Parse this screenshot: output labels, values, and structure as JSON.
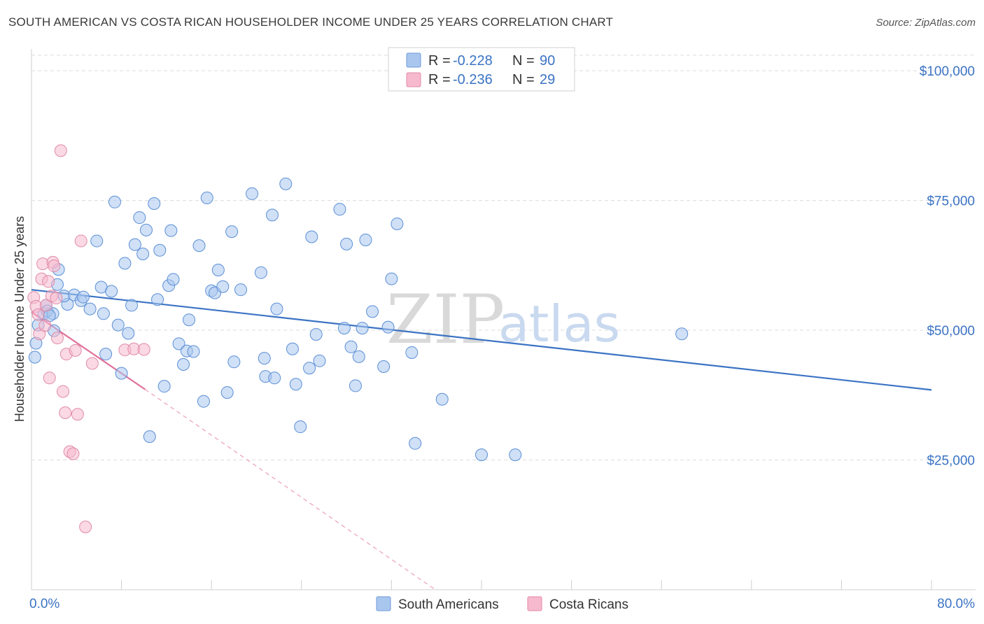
{
  "title": "SOUTH AMERICAN VS COSTA RICAN HOUSEHOLDER INCOME UNDER 25 YEARS CORRELATION CHART",
  "source": "Source: ZipAtlas.com",
  "watermark": {
    "zip": "ZIP",
    "atlas": "atlas"
  },
  "colors": {
    "blue": "#3b73c4",
    "blue_fill": "#a9c6ee",
    "pink": "#e0709a",
    "pink_fill": "#f6b9cd",
    "grid": "#dcdcdc"
  },
  "legend": {
    "rows": [
      {
        "r_label": "R = ",
        "r_value": "-0.228",
        "n_label": "N = ",
        "n_value": "90"
      },
      {
        "r_label": "R = ",
        "r_value": "-0.236",
        "n_label": "N = ",
        "n_value": "29"
      }
    ]
  },
  "bottom_legend": [
    "South Americans",
    "Costa Ricans"
  ],
  "chart_data": {
    "type": "scatter",
    "title": "SOUTH AMERICAN VS COSTA RICAN HOUSEHOLDER INCOME UNDER 25 YEARS CORRELATION CHART",
    "xlabel": "",
    "ylabel": "Householder Income Under 25 years",
    "xlim": [
      0,
      80
    ],
    "ylim": [
      0,
      105000
    ],
    "x_tick_labels": [
      "0.0%",
      "80.0%"
    ],
    "y_ticks": [
      25000,
      50000,
      75000,
      100000
    ],
    "y_tick_labels": [
      "$25,000",
      "$50,000",
      "$75,000",
      "$100,000"
    ],
    "grid": true,
    "series": [
      {
        "name": "South Americans",
        "r": -0.228,
        "n": 90,
        "trend": {
          "x0": 0,
          "y0": 57800,
          "x1": 80,
          "y1": 38500
        },
        "points": [
          [
            0.3,
            44800
          ],
          [
            0.4,
            47500
          ],
          [
            0.6,
            51000
          ],
          [
            1.1,
            53200
          ],
          [
            1.3,
            54800
          ],
          [
            1.4,
            53700
          ],
          [
            1.9,
            53200
          ],
          [
            2.3,
            58800
          ],
          [
            2.4,
            61700
          ],
          [
            3.2,
            55000
          ],
          [
            2.9,
            56600
          ],
          [
            3.8,
            56800
          ],
          [
            4.4,
            55700
          ],
          [
            4.6,
            56400
          ],
          [
            5.2,
            54100
          ],
          [
            5.8,
            67200
          ],
          [
            6.2,
            58300
          ],
          [
            6.4,
            53200
          ],
          [
            6.6,
            45400
          ],
          [
            7.1,
            57500
          ],
          [
            7.4,
            74700
          ],
          [
            7.7,
            51000
          ],
          [
            8.0,
            41700
          ],
          [
            8.3,
            62900
          ],
          [
            8.6,
            49400
          ],
          [
            8.9,
            54800
          ],
          [
            9.2,
            66500
          ],
          [
            9.6,
            71700
          ],
          [
            9.9,
            64700
          ],
          [
            10.2,
            69300
          ],
          [
            10.5,
            29500
          ],
          [
            10.9,
            74400
          ],
          [
            11.2,
            55900
          ],
          [
            11.4,
            65400
          ],
          [
            11.8,
            39200
          ],
          [
            12.2,
            58600
          ],
          [
            12.4,
            69200
          ],
          [
            12.6,
            59800
          ],
          [
            13.1,
            47400
          ],
          [
            13.5,
            43400
          ],
          [
            13.8,
            46000
          ],
          [
            14.0,
            52000
          ],
          [
            14.4,
            45900
          ],
          [
            14.9,
            66300
          ],
          [
            15.3,
            36300
          ],
          [
            15.6,
            75500
          ],
          [
            16.0,
            57600
          ],
          [
            16.3,
            57200
          ],
          [
            16.6,
            61600
          ],
          [
            17.0,
            58400
          ],
          [
            17.4,
            38000
          ],
          [
            17.8,
            69000
          ],
          [
            18.0,
            43900
          ],
          [
            18.6,
            57800
          ],
          [
            19.6,
            76300
          ],
          [
            20.4,
            61100
          ],
          [
            20.7,
            44600
          ],
          [
            20.8,
            41100
          ],
          [
            21.4,
            72200
          ],
          [
            21.6,
            40800
          ],
          [
            21.8,
            54100
          ],
          [
            22.6,
            78200
          ],
          [
            23.2,
            46400
          ],
          [
            23.5,
            39600
          ],
          [
            23.9,
            31400
          ],
          [
            24.7,
            42700
          ],
          [
            24.9,
            68000
          ],
          [
            25.3,
            49200
          ],
          [
            25.6,
            44100
          ],
          [
            27.4,
            73300
          ],
          [
            27.8,
            50400
          ],
          [
            28.0,
            66600
          ],
          [
            28.4,
            46800
          ],
          [
            28.8,
            39300
          ],
          [
            29.1,
            44900
          ],
          [
            29.4,
            50400
          ],
          [
            29.7,
            67400
          ],
          [
            30.3,
            53600
          ],
          [
            31.3,
            43000
          ],
          [
            31.7,
            50600
          ],
          [
            32.0,
            59900
          ],
          [
            32.5,
            70500
          ],
          [
            33.8,
            45700
          ],
          [
            34.1,
            28200
          ],
          [
            36.5,
            36700
          ],
          [
            40.0,
            26000
          ],
          [
            43.0,
            26000
          ],
          [
            57.8,
            49300
          ],
          [
            1.6,
            52800
          ],
          [
            2.0,
            49900
          ]
        ]
      },
      {
        "name": "Costa Ricans",
        "r": -0.236,
        "n": 29,
        "trend": {
          "x0": 0,
          "y0": 53500,
          "x1": 10.1,
          "y1": 38600
        },
        "trend_ext": {
          "x0": 10.1,
          "y0": 38600,
          "x1": 35.9,
          "y1": 0
        },
        "points": [
          [
            0.2,
            56300
          ],
          [
            0.4,
            54600
          ],
          [
            0.6,
            53000
          ],
          [
            0.7,
            49300
          ],
          [
            0.9,
            59900
          ],
          [
            1.0,
            62800
          ],
          [
            1.2,
            50900
          ],
          [
            1.3,
            54800
          ],
          [
            1.5,
            59400
          ],
          [
            1.6,
            40800
          ],
          [
            1.8,
            56600
          ],
          [
            1.9,
            63100
          ],
          [
            2.0,
            62400
          ],
          [
            2.2,
            56200
          ],
          [
            2.3,
            48500
          ],
          [
            2.6,
            84600
          ],
          [
            2.8,
            38200
          ],
          [
            3.0,
            34100
          ],
          [
            3.1,
            45400
          ],
          [
            3.4,
            26600
          ],
          [
            3.7,
            26200
          ],
          [
            3.9,
            46100
          ],
          [
            4.1,
            33800
          ],
          [
            4.4,
            67200
          ],
          [
            4.8,
            12100
          ],
          [
            5.4,
            43600
          ],
          [
            8.3,
            46200
          ],
          [
            9.1,
            46400
          ],
          [
            10.0,
            46300
          ]
        ]
      }
    ]
  }
}
